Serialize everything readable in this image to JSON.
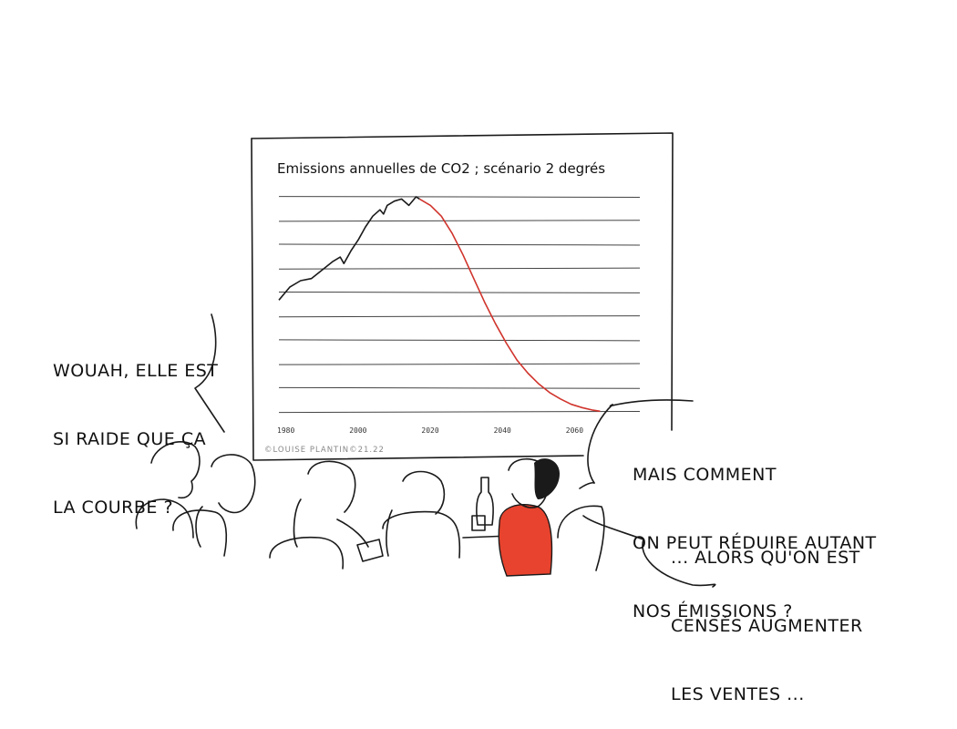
{
  "chart_data": {
    "type": "line",
    "title": "Emissions annuelles de CO2 ; scénario 2 degrés",
    "x_ticks": [
      "1980",
      "2000",
      "2020",
      "2040",
      "2060"
    ],
    "xlim": [
      1980,
      2080
    ],
    "ylim": [
      0,
      10
    ],
    "grid": true,
    "series": [
      {
        "name": "",
        "color": "#1a1a1a",
        "x": [
          1980,
          1983,
          1986,
          1989,
          1992,
          1995,
          1997,
          1998,
          2000,
          2002,
          2004,
          2006,
          2008,
          2009,
          2010,
          2012,
          2014,
          2016,
          2017,
          2018,
          2019
        ],
        "y": [
          5.2,
          5.8,
          6.1,
          6.2,
          6.6,
          7.0,
          7.2,
          6.9,
          7.5,
          8.0,
          8.6,
          9.1,
          9.4,
          9.2,
          9.6,
          9.8,
          9.9,
          9.6,
          9.8,
          10.0,
          9.9
        ]
      },
      {
        "name": "",
        "color": "#d0342c",
        "x": [
          2019,
          2022,
          2025,
          2028,
          2031,
          2034,
          2037,
          2040,
          2043,
          2046,
          2049,
          2052,
          2055,
          2058,
          2061,
          2064,
          2067,
          2069
        ],
        "y": [
          9.9,
          9.6,
          9.1,
          8.3,
          7.3,
          6.2,
          5.1,
          4.1,
          3.2,
          2.4,
          1.8,
          1.3,
          0.9,
          0.6,
          0.35,
          0.2,
          0.08,
          0.03
        ]
      }
    ]
  },
  "credit": "©LOUISE PLANTIN©21.22",
  "bubble_left": {
    "lines": [
      "WOUAH, ELLE EST",
      "SI RAIDE QUE ÇA",
      "LA COURBE ?"
    ]
  },
  "bubble_right": {
    "lines_a": [
      "MAIS COMMENT",
      "ON PEUT RÉDUIRE AUTANT",
      "NOS ÉMISSIONS ?"
    ],
    "lines_b": [
      "... ALORS QU'ON EST",
      "CENSÉS AUGMENTER",
      "LES VENTES ..."
    ]
  },
  "colors": {
    "accent": "#e8432e",
    "curve_red": "#d0342c",
    "ink": "#1a1a1a"
  }
}
